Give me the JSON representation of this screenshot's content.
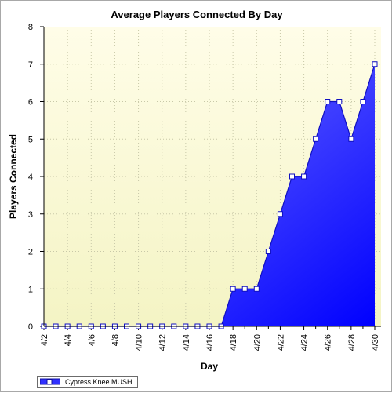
{
  "chart_data": {
    "type": "area",
    "title": "Average Players Connected By Day",
    "xlabel": "Day",
    "ylabel": "Players Connected",
    "ylim": [
      0,
      8
    ],
    "yticks": [
      0,
      1,
      2,
      3,
      4,
      5,
      6,
      7,
      8
    ],
    "grid": true,
    "legend_position": "bottom-left",
    "x": [
      "4/2",
      "4/3",
      "4/4",
      "4/5",
      "4/6",
      "4/7",
      "4/8",
      "4/9",
      "4/10",
      "4/11",
      "4/12",
      "4/13",
      "4/14",
      "4/15",
      "4/16",
      "4/17",
      "4/18",
      "4/19",
      "4/20",
      "4/21",
      "4/22",
      "4/23",
      "4/24",
      "4/25",
      "4/26",
      "4/27",
      "4/28",
      "4/29",
      "4/30"
    ],
    "xtick_labels": [
      "4/2",
      "4/4",
      "4/6",
      "4/8",
      "4/10",
      "4/12",
      "4/14",
      "4/16",
      "4/18",
      "4/20",
      "4/22",
      "4/24",
      "4/26",
      "4/28",
      "4/30"
    ],
    "series": [
      {
        "name": "Cypress Knee MUSH",
        "values": [
          0,
          0,
          0,
          0,
          0,
          0,
          0,
          0,
          0,
          0,
          0,
          0,
          0,
          0,
          0,
          0,
          1,
          1,
          1,
          2,
          3,
          4,
          4,
          5,
          6,
          6,
          5,
          6,
          7
        ],
        "color_top": "#8080ff",
        "color_bottom": "#0000ff",
        "line_color": "#1010c0"
      }
    ],
    "colors": {
      "plot_bg_top": "#fffde8",
      "plot_bg_bottom": "#f4f4c4",
      "grid": "#c8c8a8"
    }
  }
}
